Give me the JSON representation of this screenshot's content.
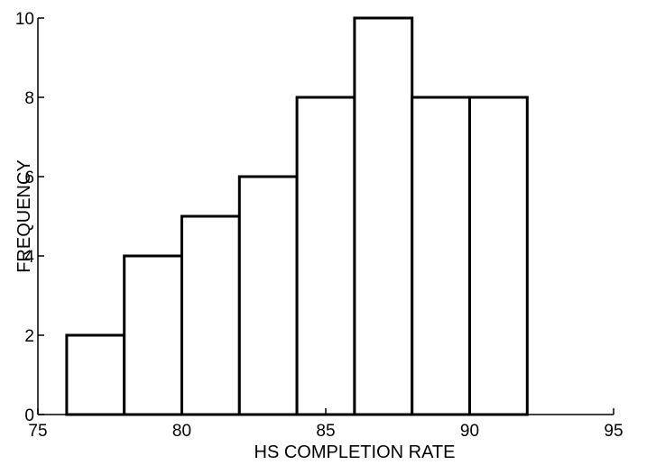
{
  "chart_data": {
    "type": "bar",
    "histogram": true,
    "bins": [
      {
        "x0": 76,
        "x1": 78,
        "value": 2
      },
      {
        "x0": 78,
        "x1": 80,
        "value": 4
      },
      {
        "x0": 80,
        "x1": 82,
        "value": 5
      },
      {
        "x0": 82,
        "x1": 84,
        "value": 6
      },
      {
        "x0": 84,
        "x1": 86,
        "value": 8
      },
      {
        "x0": 86,
        "x1": 88,
        "value": 10
      },
      {
        "x0": 88,
        "x1": 90,
        "value": 8
      },
      {
        "x0": 90,
        "x1": 92,
        "value": 8
      }
    ],
    "xlabel": "HS COMPLETION RATE",
    "ylabel": "FREQUENCY",
    "xlim": [
      75,
      95
    ],
    "ylim": [
      0,
      10
    ],
    "x_ticks": [
      "75",
      "80",
      "85",
      "90",
      "95"
    ],
    "y_ticks": [
      "0",
      "2",
      "4",
      "6",
      "8",
      "10"
    ],
    "grid": false,
    "bar_fill": "#ffffff",
    "bar_stroke": "#000000"
  }
}
